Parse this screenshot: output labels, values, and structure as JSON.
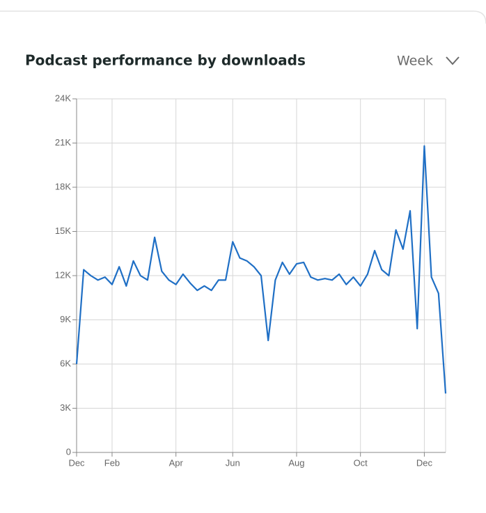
{
  "ui": {
    "period": "Week"
  },
  "chart_data": {
    "type": "line",
    "title": "Podcast performance by downloads",
    "x": [
      0,
      1,
      2,
      3,
      4,
      5,
      6,
      7,
      8,
      9,
      10,
      11,
      12,
      13,
      14,
      15,
      16,
      17,
      18,
      19,
      20,
      21,
      22,
      23,
      24,
      25,
      26,
      27,
      28,
      29,
      30,
      31,
      32,
      33,
      34,
      35,
      36,
      37,
      38,
      39,
      40,
      41,
      42,
      43,
      44,
      45,
      46,
      47,
      48,
      49,
      50,
      51,
      52
    ],
    "series": [
      {
        "name": "Downloads",
        "color": "#1f6fc5",
        "values": [
          6000,
          12400,
          12000,
          11700,
          11900,
          11400,
          12600,
          11300,
          13000,
          12000,
          11700,
          14600,
          12300,
          11700,
          11400,
          12100,
          11500,
          11000,
          11300,
          11000,
          11700,
          11700,
          14300,
          13200,
          13000,
          12600,
          12000,
          7600,
          11700,
          12900,
          12100,
          12800,
          12900,
          11900,
          11700,
          11800,
          11700,
          12100,
          11400,
          11900,
          11300,
          12100,
          13700,
          12400,
          12000,
          15100,
          13800,
          16400,
          8400,
          20800,
          11900,
          10800,
          4000
        ]
      }
    ],
    "xlim": [
      0,
      52
    ],
    "xticks": [
      {
        "value": 0,
        "label": "Dec"
      },
      {
        "value": 5,
        "label": "Feb"
      },
      {
        "value": 14,
        "label": "Apr"
      },
      {
        "value": 22,
        "label": "Jun"
      },
      {
        "value": 31,
        "label": "Aug"
      },
      {
        "value": 40,
        "label": "Oct"
      },
      {
        "value": 49,
        "label": "Dec"
      }
    ],
    "ylim": [
      0,
      24000
    ],
    "yticks": [
      0,
      {
        "value": 3000,
        "label": "3K"
      },
      {
        "value": 6000,
        "label": "6K"
      },
      {
        "value": 9000,
        "label": "9K"
      },
      {
        "value": 12000,
        "label": "12K"
      },
      {
        "value": 15000,
        "label": "15K"
      },
      {
        "value": 18000,
        "label": "18K"
      },
      {
        "value": 21000,
        "label": "21K"
      },
      {
        "value": 24000,
        "label": "24K"
      }
    ],
    "grid": true
  }
}
